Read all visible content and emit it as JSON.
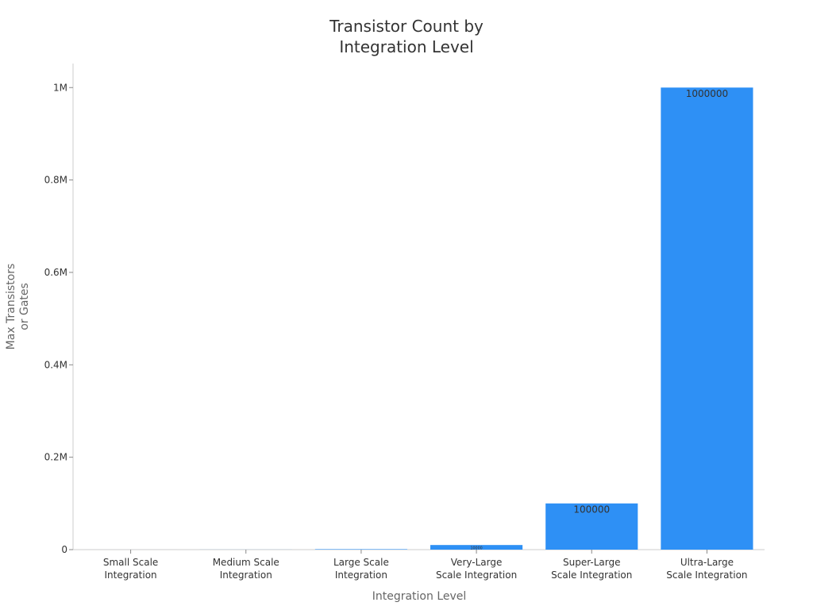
{
  "chart_data": {
    "type": "bar",
    "title": "Transistor Count by\nIntegration Level",
    "x_label": "Integration Level",
    "y_label": "Max Transistors\nor Gates",
    "categories": [
      "Small Scale\nIntegration",
      "Medium Scale\nIntegration",
      "Large Scale\nIntegration",
      "Very-Large\nScale Integration",
      "Super-Large\nScale Integration",
      "Ultra-Large\nScale Integration"
    ],
    "values": [
      10,
      100,
      1000,
      10000,
      100000,
      1000000
    ],
    "color": "#2e90f5",
    "ylim": [
      0,
      1052000
    ],
    "yticks": [
      0,
      {
        "value": 200000,
        "label": "0.2M"
      },
      {
        "value": 400000,
        "label": "0.4M"
      },
      {
        "value": 600000,
        "label": "0.6M"
      },
      {
        "value": 800000,
        "label": "0.8M"
      },
      {
        "value": 1000000,
        "label": "1M"
      }
    ]
  }
}
